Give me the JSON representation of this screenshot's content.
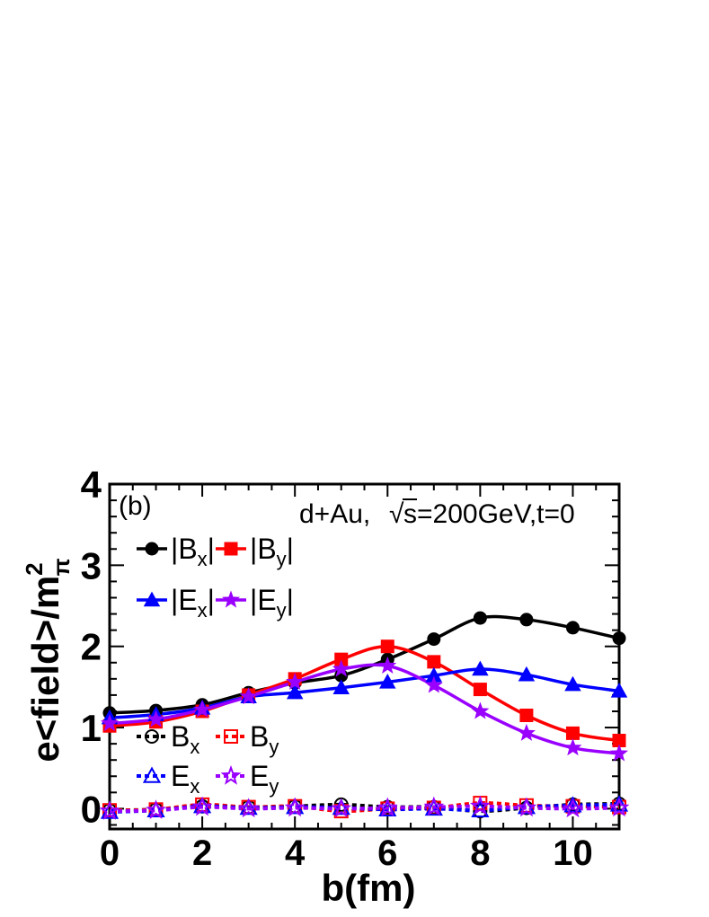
{
  "chart_data": {
    "type": "line",
    "panel_label": "(b)",
    "annotation": {
      "prefix": "d+Au,",
      "root_symbol": "√",
      "suffix": "s=200GeV,t=0"
    },
    "xlabel": "b(fm)",
    "ylabel": {
      "main": "e<field>/m",
      "superscript": "2",
      "subscript": "π"
    },
    "xlim": [
      0,
      11
    ],
    "ylim": [
      -0.25,
      4
    ],
    "x_ticks": [
      "0",
      "2",
      "4",
      "6",
      "8",
      "10"
    ],
    "y_ticks": [
      "0",
      "1",
      "2",
      "3",
      "4"
    ],
    "grid": false,
    "legend_position": "left",
    "x": [
      0,
      1,
      2,
      3,
      4,
      5,
      6,
      7,
      8,
      9,
      10,
      11
    ],
    "series": [
      {
        "name": "|Bx|",
        "label_main": "|B",
        "label_sub": "x",
        "label_end": "|",
        "color": "#000000",
        "marker": "circle",
        "filled": true,
        "dashed": false,
        "values": [
          1.18,
          1.21,
          1.28,
          1.43,
          1.55,
          1.64,
          1.84,
          2.09,
          2.35,
          2.33,
          2.23,
          2.1
        ]
      },
      {
        "name": "|By|",
        "label_main": "|B",
        "label_sub": "y",
        "label_end": "|",
        "color": "#ff0000",
        "marker": "square",
        "filled": true,
        "dashed": false,
        "values": [
          1.02,
          1.07,
          1.2,
          1.4,
          1.6,
          1.84,
          2.0,
          1.81,
          1.47,
          1.15,
          0.93,
          0.84
        ]
      },
      {
        "name": "|Ex|",
        "label_main": "|E",
        "label_sub": "x",
        "label_end": "|",
        "color": "#0000ff",
        "marker": "triangle",
        "filled": true,
        "dashed": false,
        "values": [
          1.12,
          1.16,
          1.24,
          1.38,
          1.43,
          1.49,
          1.56,
          1.64,
          1.72,
          1.65,
          1.53,
          1.45
        ]
      },
      {
        "name": "|Ey|",
        "label_main": "|E",
        "label_sub": "y",
        "label_end": "|",
        "color": "#9900ff",
        "marker": "star",
        "filled": true,
        "dashed": false,
        "values": [
          1.05,
          1.1,
          1.22,
          1.38,
          1.56,
          1.72,
          1.76,
          1.52,
          1.2,
          0.93,
          0.75,
          0.68
        ]
      },
      {
        "name": "Bx",
        "label_main": "B",
        "label_sub": "x",
        "label_end": "",
        "color": "#000000",
        "marker": "circle",
        "filled": false,
        "dashed": true,
        "values": [
          -0.02,
          -0.01,
          0.03,
          0.02,
          0.03,
          0.05,
          0.02,
          0.02,
          -0.03,
          0.01,
          0.05,
          0.06
        ]
      },
      {
        "name": "By",
        "label_main": "B",
        "label_sub": "y",
        "label_end": "",
        "color": "#ff0000",
        "marker": "square",
        "filled": false,
        "dashed": true,
        "values": [
          -0.02,
          -0.01,
          0.05,
          0.02,
          0.03,
          -0.03,
          0.0,
          0.01,
          0.07,
          0.04,
          0.03,
          0.02
        ]
      },
      {
        "name": "Ex",
        "label_main": "E",
        "label_sub": "x",
        "label_end": "",
        "color": "#0000ff",
        "marker": "triangle",
        "filled": false,
        "dashed": true,
        "values": [
          -0.04,
          -0.02,
          0.03,
          0.01,
          0.02,
          0.01,
          -0.01,
          0.0,
          -0.02,
          0.02,
          0.04,
          0.05
        ]
      },
      {
        "name": "Ey",
        "label_main": "E",
        "label_sub": "y",
        "label_end": "",
        "color": "#9900ff",
        "marker": "star",
        "filled": false,
        "dashed": true,
        "values": [
          -0.03,
          -0.02,
          0.02,
          0.0,
          0.01,
          0.0,
          0.01,
          0.02,
          0.03,
          0.01,
          0.0,
          0.01
        ]
      }
    ]
  }
}
